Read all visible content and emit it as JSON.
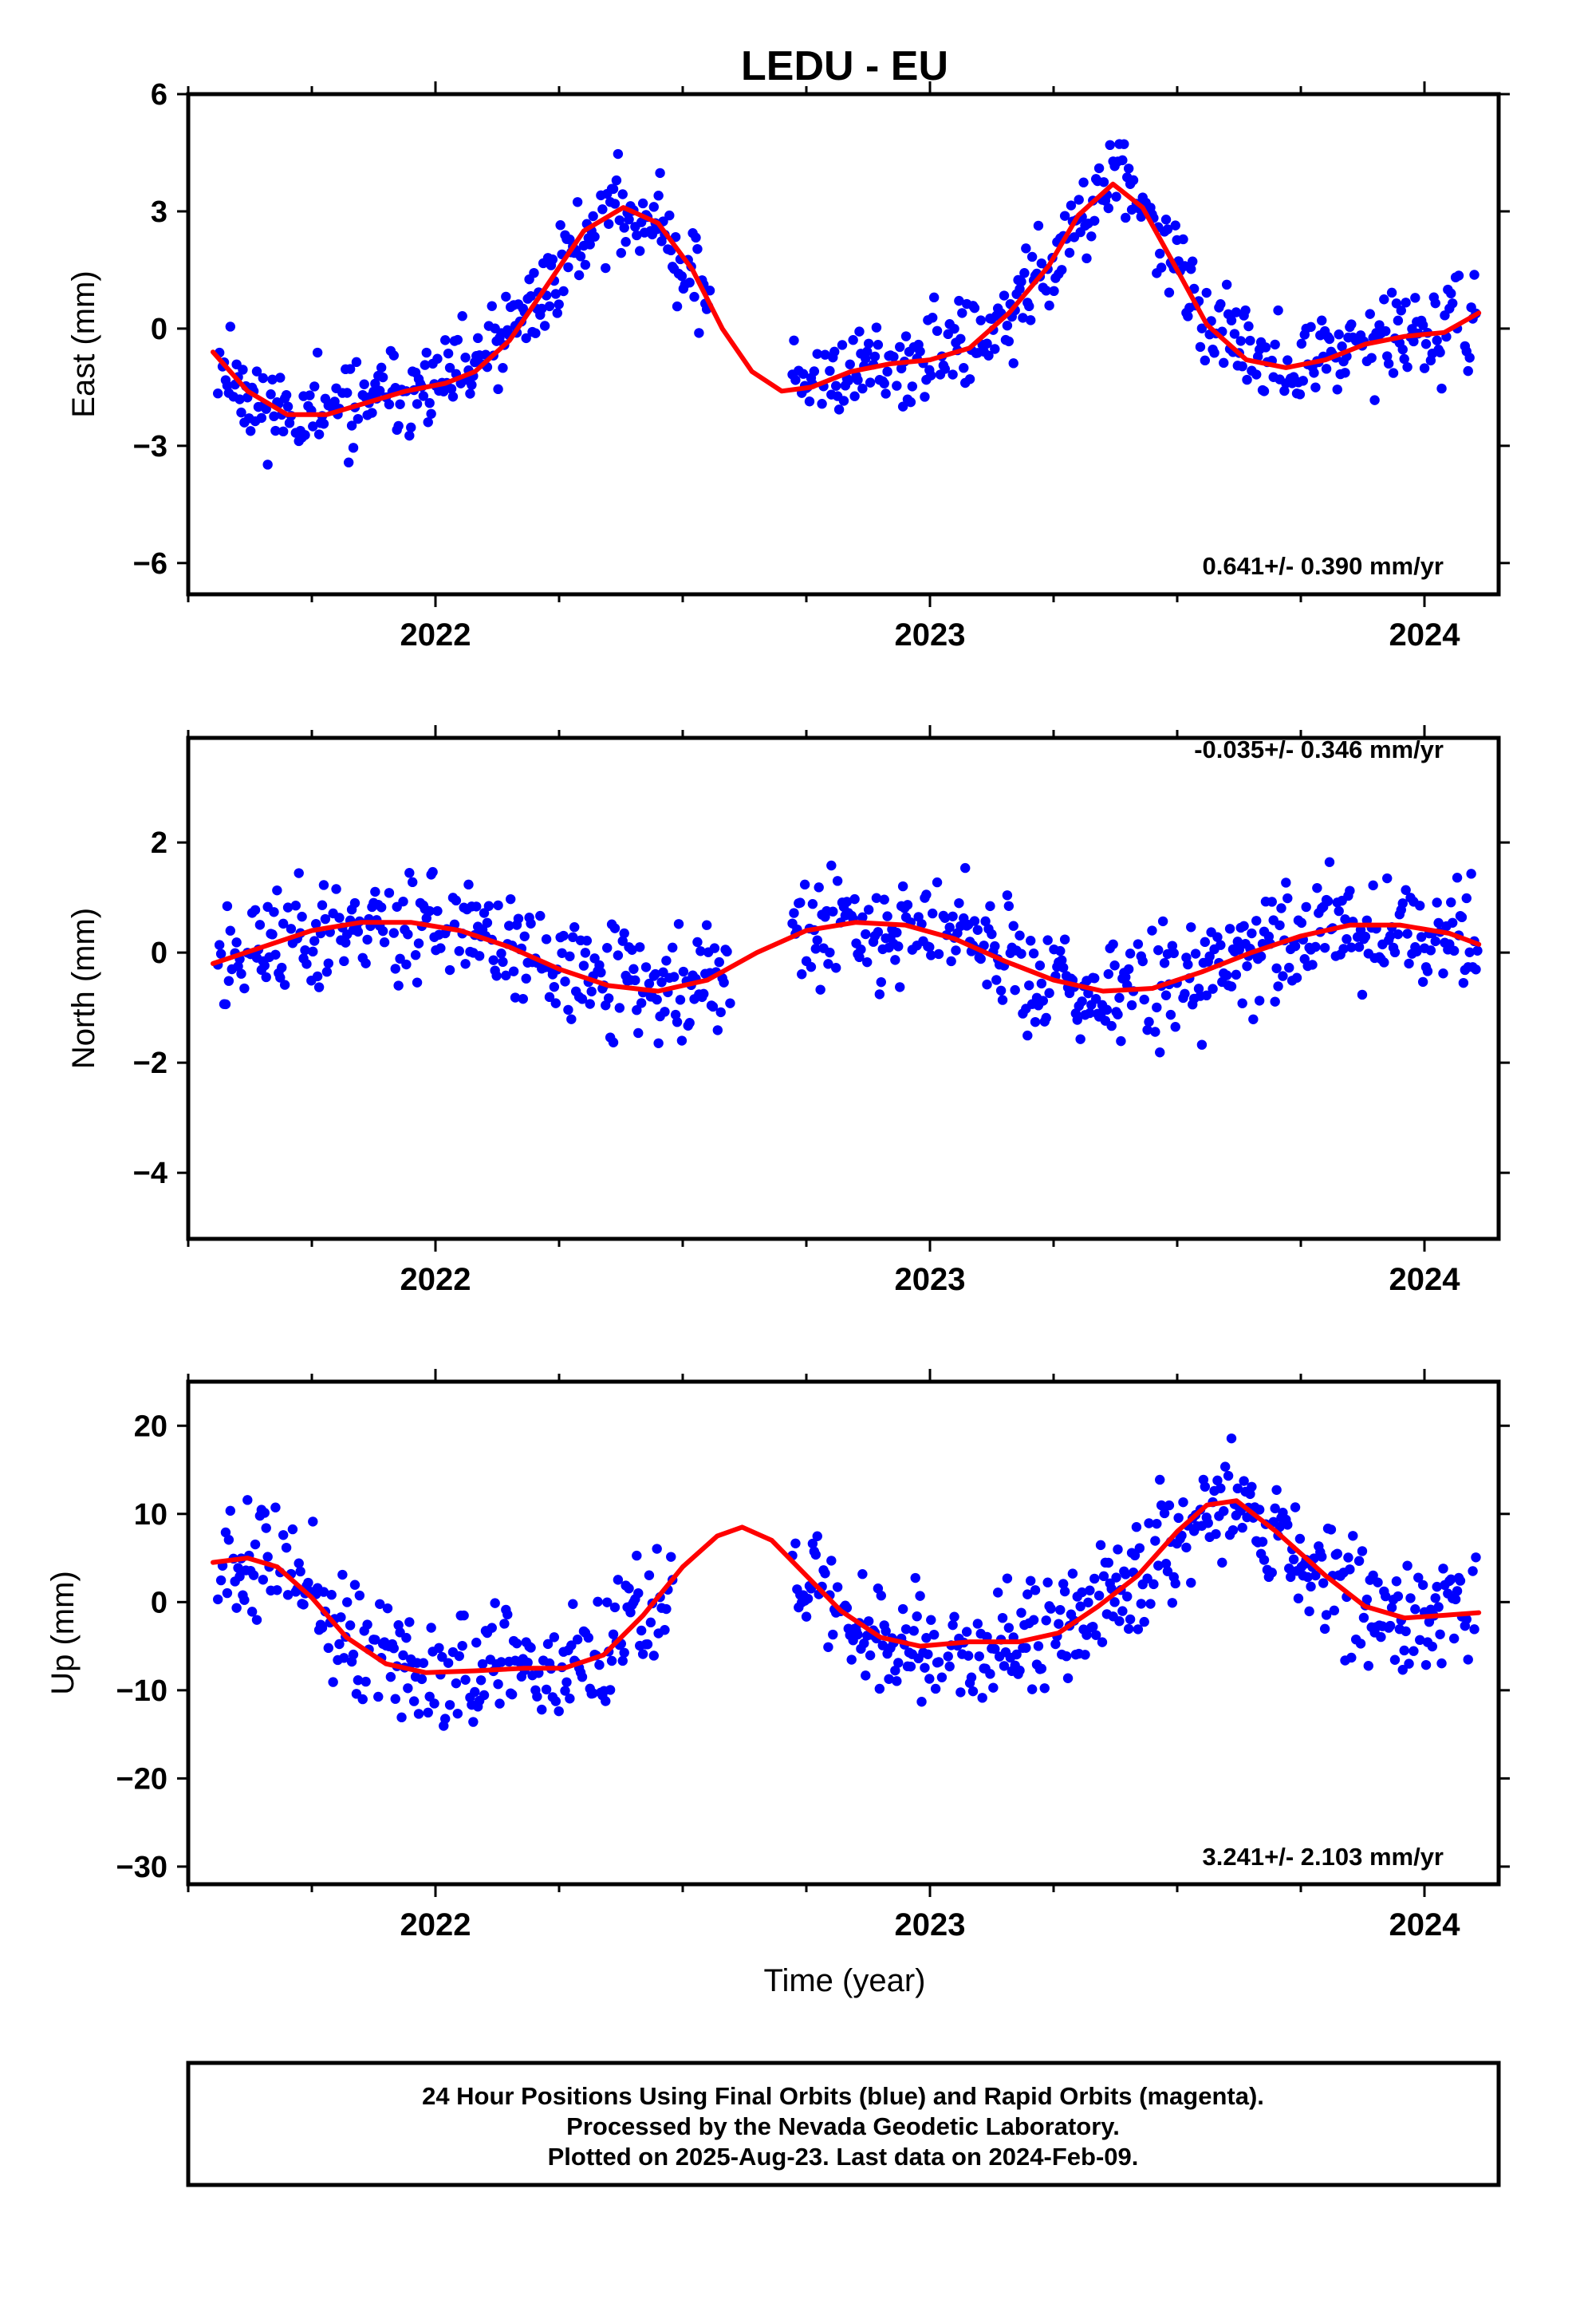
{
  "title": "LEDU - EU",
  "colors": {
    "final_points": "#0000ff",
    "fit_curve": "#ff0000",
    "frame": "#000000"
  },
  "xlabel": "Time (year)",
  "footer": {
    "line1": "24 Hour Positions Using Final Orbits (blue) and Rapid Orbits (magenta).",
    "line2": "Processed by the Nevada Geodetic Laboratory.",
    "line3": "Plotted on 2025-Aug-23. Last data on 2024-Feb-09."
  },
  "chart_data": [
    {
      "type": "scatter",
      "ylabel": "East (mm)",
      "rate_label": "0.641+/- 0.390 mm/yr",
      "xlim": [
        2021.5,
        2024.15
      ],
      "ylim": [
        -6.8,
        6.0
      ],
      "xticks": [
        2022,
        2023,
        2024
      ],
      "yticks": [
        -6,
        -3,
        0,
        3,
        6
      ],
      "ytick_labels": [
        "−6",
        "−3",
        "0",
        "3",
        "6"
      ],
      "seed": 11,
      "noise": 1.0,
      "gaps": [
        [
          2022.56,
          2022.72
        ]
      ],
      "fit_curve": [
        [
          2021.55,
          -0.6
        ],
        [
          2021.62,
          -1.6
        ],
        [
          2021.7,
          -2.2
        ],
        [
          2021.78,
          -2.2
        ],
        [
          2021.86,
          -1.9
        ],
        [
          2021.94,
          -1.6
        ],
        [
          2022.02,
          -1.4
        ],
        [
          2022.08,
          -1.1
        ],
        [
          2022.15,
          -0.3
        ],
        [
          2022.22,
          1.0
        ],
        [
          2022.3,
          2.5
        ],
        [
          2022.38,
          3.1
        ],
        [
          2022.45,
          2.7
        ],
        [
          2022.52,
          1.5
        ],
        [
          2022.58,
          0.0
        ],
        [
          2022.64,
          -1.1
        ],
        [
          2022.7,
          -1.6
        ],
        [
          2022.76,
          -1.5
        ],
        [
          2022.84,
          -1.1
        ],
        [
          2022.92,
          -0.9
        ],
        [
          2023.0,
          -0.8
        ],
        [
          2023.08,
          -0.5
        ],
        [
          2023.16,
          0.4
        ],
        [
          2023.24,
          1.6
        ],
        [
          2023.3,
          2.9
        ],
        [
          2023.37,
          3.7
        ],
        [
          2023.43,
          3.1
        ],
        [
          2023.5,
          1.5
        ],
        [
          2023.56,
          0.1
        ],
        [
          2023.64,
          -0.8
        ],
        [
          2023.72,
          -1.0
        ],
        [
          2023.8,
          -0.8
        ],
        [
          2023.88,
          -0.4
        ],
        [
          2023.96,
          -0.2
        ],
        [
          2024.04,
          -0.1
        ],
        [
          2024.11,
          0.4
        ]
      ]
    },
    {
      "type": "scatter",
      "ylabel": "North (mm)",
      "rate_label": "-0.035+/- 0.346 mm/yr",
      "xlim": [
        2021.5,
        2024.15
      ],
      "ylim": [
        -5.2,
        3.9
      ],
      "xticks": [
        2022,
        2023,
        2024
      ],
      "yticks": [
        -4,
        -2,
        0,
        2
      ],
      "ytick_labels": [
        "−4",
        "−2",
        "0",
        "2"
      ],
      "seed": 23,
      "noise": 0.9,
      "gaps": [
        [
          2022.6,
          2022.72
        ]
      ],
      "fit_curve": [
        [
          2021.55,
          -0.2
        ],
        [
          2021.65,
          0.1
        ],
        [
          2021.75,
          0.4
        ],
        [
          2021.85,
          0.55
        ],
        [
          2021.95,
          0.55
        ],
        [
          2022.05,
          0.4
        ],
        [
          2022.15,
          0.1
        ],
        [
          2022.25,
          -0.3
        ],
        [
          2022.35,
          -0.6
        ],
        [
          2022.45,
          -0.7
        ],
        [
          2022.55,
          -0.5
        ],
        [
          2022.65,
          0.0
        ],
        [
          2022.75,
          0.4
        ],
        [
          2022.85,
          0.55
        ],
        [
          2022.95,
          0.5
        ],
        [
          2023.05,
          0.25
        ],
        [
          2023.15,
          -0.15
        ],
        [
          2023.25,
          -0.5
        ],
        [
          2023.35,
          -0.7
        ],
        [
          2023.45,
          -0.65
        ],
        [
          2023.55,
          -0.35
        ],
        [
          2023.65,
          0.0
        ],
        [
          2023.75,
          0.3
        ],
        [
          2023.85,
          0.5
        ],
        [
          2023.95,
          0.5
        ],
        [
          2024.05,
          0.35
        ],
        [
          2024.11,
          0.15
        ]
      ]
    },
    {
      "type": "scatter",
      "ylabel": "Up (mm)",
      "rate_label": "3.241+/- 2.103 mm/yr",
      "xlim": [
        2021.5,
        2024.15
      ],
      "ylim": [
        -32,
        25
      ],
      "xticks": [
        2022,
        2023,
        2024
      ],
      "yticks": [
        -30,
        -20,
        -10,
        0,
        10,
        20
      ],
      "ytick_labels": [
        "−30",
        "−20",
        "−10",
        "0",
        "10",
        "20"
      ],
      "seed": 37,
      "noise": 5.5,
      "gaps": [
        [
          2022.48,
          2022.72
        ]
      ],
      "fit_curve": [
        [
          2021.55,
          4.5
        ],
        [
          2021.62,
          5.0
        ],
        [
          2021.68,
          4.0
        ],
        [
          2021.75,
          0.5
        ],
        [
          2021.82,
          -4.0
        ],
        [
          2021.9,
          -7.0
        ],
        [
          2021.98,
          -8.0
        ],
        [
          2022.08,
          -7.8
        ],
        [
          2022.18,
          -7.5
        ],
        [
          2022.26,
          -7.5
        ],
        [
          2022.34,
          -6.0
        ],
        [
          2022.42,
          -1.5
        ],
        [
          2022.5,
          4.0
        ],
        [
          2022.57,
          7.5
        ],
        [
          2022.62,
          8.5
        ],
        [
          2022.68,
          7.0
        ],
        [
          2022.75,
          3.0
        ],
        [
          2022.82,
          -1.0
        ],
        [
          2022.9,
          -4.0
        ],
        [
          2022.98,
          -5.0
        ],
        [
          2023.08,
          -4.5
        ],
        [
          2023.18,
          -4.5
        ],
        [
          2023.26,
          -3.5
        ],
        [
          2023.34,
          -0.5
        ],
        [
          2023.42,
          3.0
        ],
        [
          2023.5,
          8.0
        ],
        [
          2023.56,
          11.0
        ],
        [
          2023.62,
          11.5
        ],
        [
          2023.7,
          8.0
        ],
        [
          2023.8,
          3.0
        ],
        [
          2023.88,
          -0.5
        ],
        [
          2023.96,
          -1.8
        ],
        [
          2024.04,
          -1.5
        ],
        [
          2024.11,
          -1.2
        ]
      ]
    }
  ]
}
